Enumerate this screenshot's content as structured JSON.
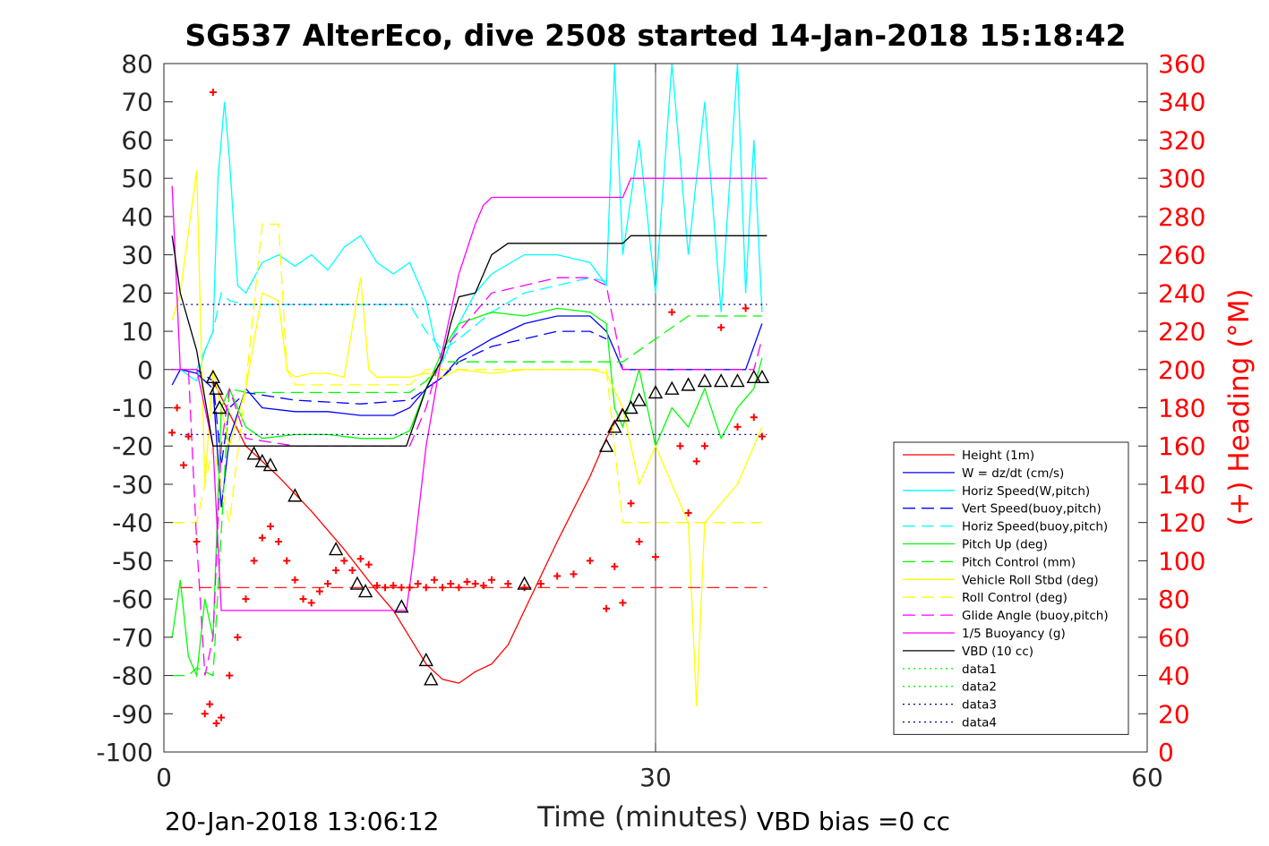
{
  "chart_data": {
    "type": "line",
    "title": "SG537 AlterEco, dive 2508 started 14-Jan-2018 15:18:42",
    "xlabel": "Time (minutes)",
    "ylabel": "",
    "y2label": "(+) Heading (°M)",
    "xlim": [
      0,
      60
    ],
    "ylim": [
      -100,
      80
    ],
    "y2lim": [
      0,
      360
    ],
    "xticks": [
      "0",
      "30",
      "60"
    ],
    "yticks": [
      "80",
      "70",
      "60",
      "50",
      "40",
      "30",
      "20",
      "10",
      "0",
      "-10",
      "-20",
      "-30",
      "-40",
      "-50",
      "-60",
      "-70",
      "-80",
      "-90",
      "-100"
    ],
    "y2ticks": [
      "360",
      "340",
      "320",
      "300",
      "280",
      "260",
      "240",
      "220",
      "200",
      "180",
      "160",
      "140",
      "120",
      "100",
      "80",
      "60",
      "40",
      "20",
      "0"
    ],
    "footer_left": "20-Jan-2018 13:06:12",
    "footer_right": "VBD bias =0 cc",
    "legend_position": "bottom-right",
    "colors": {
      "red": "#ff0000",
      "blue": "#0000ff",
      "cyan": "#00ffff",
      "green": "#00ff00",
      "yellow": "#ffff00",
      "magenta": "#ff00ff",
      "black": "#000000",
      "darkblue": "#00008b"
    },
    "series": [
      {
        "name": "Height (1m)",
        "color": "#ff0000",
        "style": "solid",
        "x": [
          3.0,
          5.0,
          7.0,
          9.0,
          11.0,
          13.0,
          14.0,
          15.0,
          16.0,
          17.0,
          18.0,
          19.0,
          20.0,
          21.0,
          22.0,
          24.0,
          26.0,
          27.0,
          28.0
        ],
        "y": [
          -3,
          -20,
          -28,
          -37,
          -47,
          -58,
          -63,
          -70,
          -77,
          -81,
          -82,
          -79,
          -77,
          -72,
          -63,
          -45,
          -28,
          -18,
          -10
        ]
      },
      {
        "name": "W = dz/dt (cm/s)",
        "color": "#0000ff",
        "style": "solid",
        "x": [
          0.5,
          1.0,
          2.0,
          3.0,
          3.5,
          4.0,
          5.0,
          6.0,
          8.0,
          10.0,
          12.0,
          14.0,
          15.0,
          16.0,
          17.0,
          18.0,
          20.0,
          22.0,
          24.0,
          26.0,
          27.0,
          27.5,
          28.0,
          30.0,
          32.0,
          34.0,
          35.5,
          36.5
        ],
        "y": [
          -4,
          0,
          -1,
          -5,
          -36,
          -18,
          -5,
          -10,
          -11,
          -11,
          -12,
          -12,
          -10,
          -5,
          -2,
          3,
          8,
          12,
          14,
          14,
          10,
          5,
          0,
          0,
          0,
          0,
          0,
          12
        ]
      },
      {
        "name": "Horiz Speed(W,pitch)",
        "color": "#00ffff",
        "style": "solid",
        "x": [
          0.5,
          1.0,
          2.0,
          2.5,
          3.0,
          3.3,
          3.7,
          4.0,
          4.5,
          5.0,
          6.0,
          7.0,
          8.0,
          9.0,
          10.0,
          11.0,
          12.0,
          13.0,
          14.0,
          15.0,
          16.0,
          16.5,
          17.0,
          18.0,
          19.0,
          20.0,
          22.0,
          24.0,
          26.0,
          27.0,
          27.5,
          28.0,
          29.0,
          30.0,
          31.0,
          32.0,
          33.0,
          34.0,
          35.0,
          35.5,
          36.0,
          36.5
        ],
        "y": [
          0,
          0,
          -3,
          5,
          10,
          50,
          70,
          55,
          22,
          20,
          28,
          30,
          27,
          30,
          26,
          32,
          35,
          28,
          25,
          28,
          18,
          8,
          2,
          12,
          20,
          25,
          30,
          30,
          28,
          22,
          80,
          30,
          60,
          20,
          80,
          30,
          70,
          15,
          80,
          20,
          60,
          15
        ]
      },
      {
        "name": "Vert Speed(buoy,pitch)",
        "color": "#0000ff",
        "style": "dashed",
        "x": [
          0.5,
          2.0,
          3.0,
          3.5,
          4.0,
          5.0,
          8.0,
          12.0,
          15.0,
          16.0,
          17.0,
          18.0,
          20.0,
          22.0,
          24.0,
          26.0,
          27.0
        ],
        "y": [
          0,
          0,
          -3,
          -25,
          -10,
          -6,
          -8,
          -9,
          -8,
          -5,
          -2,
          2,
          6,
          8,
          10,
          10,
          8
        ]
      },
      {
        "name": "Horiz Speed(buoy,pitch)",
        "color": "#00ffff",
        "style": "dashed",
        "x": [
          0.5,
          2.0,
          3.0,
          3.5,
          4.0,
          5.0,
          8.0,
          12.0,
          15.0,
          16.0,
          17.0,
          18.0,
          20.0,
          22.0,
          24.0,
          26.0,
          27.0
        ],
        "y": [
          0,
          0,
          10,
          20,
          18,
          17,
          17,
          17,
          17,
          10,
          5,
          8,
          15,
          20,
          22,
          24,
          23
        ]
      },
      {
        "name": "Pitch Up (deg)",
        "color": "#00ff00",
        "style": "solid",
        "x": [
          0.5,
          1.0,
          1.5,
          2.0,
          2.5,
          3.0,
          3.5,
          4.0,
          5.0,
          6.0,
          8.0,
          10.0,
          12.0,
          14.0,
          15.0,
          16.0,
          17.0,
          18.0,
          20.0,
          22.0,
          24.0,
          26.0,
          27.0,
          27.5,
          28.0,
          29.0,
          30.0,
          31.0,
          32.0,
          33.0,
          34.0,
          35.0,
          36.0,
          36.5
        ],
        "y": [
          -70,
          -55,
          -75,
          -80,
          -60,
          -70,
          -10,
          -5,
          -15,
          -18,
          -17,
          -17,
          -18,
          -18,
          -16,
          -5,
          5,
          12,
          15,
          14,
          16,
          15,
          12,
          -10,
          -15,
          0,
          -20,
          -10,
          -15,
          -5,
          -18,
          -10,
          -5,
          3
        ]
      },
      {
        "name": "Pitch Control (mm)",
        "color": "#00ff00",
        "style": "dashed",
        "x": [
          0.5,
          1.5,
          2.0,
          3.0,
          4.0,
          5.0,
          10.0,
          15.0,
          16.0,
          17.0,
          18.0,
          20.0,
          22.0,
          24.0,
          26.0,
          27.0,
          28.0,
          32.0,
          34.0,
          36.5
        ],
        "y": [
          -80,
          -80,
          -78,
          -80,
          -5,
          -6,
          -6,
          -6,
          -3,
          2,
          2,
          2,
          2,
          2,
          2,
          2,
          2,
          14,
          14,
          14
        ]
      },
      {
        "name": "Vehicle Roll Stbd (deg)",
        "color": "#ffff00",
        "style": "solid",
        "x": [
          0.5,
          1.0,
          2.0,
          2.5,
          3.0,
          4.0,
          5.0,
          6.0,
          7.0,
          7.5,
          8.0,
          9.0,
          10.0,
          11.0,
          12.0,
          12.5,
          13.0,
          14.0,
          15.0,
          16.0,
          17.0,
          18.0,
          20.0,
          22.0,
          24.0,
          26.0,
          27.0,
          28.0,
          29.0,
          30.0,
          31.0,
          32.0,
          32.5,
          33.0,
          34.0,
          35.0,
          36.0,
          36.5
        ],
        "y": [
          13,
          20,
          52,
          -30,
          0,
          -20,
          -5,
          20,
          18,
          0,
          -2,
          -1,
          -1,
          -2,
          24,
          0,
          -2,
          -2,
          -2,
          -1,
          -2,
          0,
          -1,
          0,
          0,
          0,
          -1,
          -10,
          -30,
          -20,
          -30,
          -40,
          -88,
          -40,
          -35,
          -30,
          -20,
          -15
        ]
      },
      {
        "name": "Roll Control (deg)",
        "color": "#ffff00",
        "style": "dashed",
        "x": [
          0.5,
          2.0,
          3.0,
          4.0,
          5.0,
          6.0,
          7.0,
          7.5,
          8.0,
          12.0,
          15.0,
          16.0,
          20.0,
          24.0,
          27.0,
          28.0,
          30.0,
          32.0,
          34.0,
          36.5
        ],
        "y": [
          -40,
          -40,
          -20,
          -40,
          -4,
          38,
          38,
          0,
          -4,
          -4,
          -4,
          0,
          0,
          0,
          0,
          -40,
          -40,
          -40,
          -40,
          -40
        ]
      },
      {
        "name": "Glide Angle (buoy,pitch)",
        "color": "#ff00ff",
        "style": "dashed",
        "x": [
          0.5,
          1.5,
          2.0,
          2.5,
          3.0,
          3.5,
          4.0,
          5.0,
          8.0,
          12.0,
          15.0,
          16.0,
          17.0,
          18.0,
          20.0,
          22.0,
          24.0,
          26.0,
          27.0,
          28.0,
          34.0,
          36.0,
          36.5
        ],
        "y": [
          0,
          0,
          -45,
          -80,
          -70,
          -20,
          -5,
          -18,
          -20,
          -20,
          -20,
          -10,
          5,
          10,
          20,
          22,
          24,
          24,
          22,
          0,
          0,
          0,
          8
        ]
      },
      {
        "name": "1/5 Buoyancy (g)",
        "color": "#ff00ff",
        "style": "solid",
        "x": [
          0.5,
          1.0,
          2.0,
          3.0,
          3.5,
          5.0,
          8.0,
          12.0,
          14.8,
          15.2,
          16.0,
          17.0,
          18.0,
          19.0,
          19.5,
          20.0,
          21.0,
          24.0,
          27.0,
          28.0,
          28.5,
          29.0,
          32.0,
          36.8
        ],
        "y": [
          48,
          0,
          0,
          -20,
          -63,
          -63,
          -63,
          -63,
          -63,
          -50,
          -20,
          5,
          25,
          38,
          43,
          45,
          45,
          45,
          45,
          45,
          50,
          50,
          50,
          50
        ]
      },
      {
        "name": "VBD (10 cc)",
        "color": "#000000",
        "style": "solid",
        "x": [
          0.5,
          1.0,
          2.0,
          2.8,
          3.0,
          3.5,
          5.0,
          8.0,
          12.0,
          14.8,
          15.2,
          16.0,
          17.0,
          17.5,
          18.0,
          19.0,
          19.5,
          20.0,
          21.0,
          24.0,
          27.0,
          28.0,
          28.5,
          29.0,
          32.0,
          36.8
        ],
        "y": [
          35,
          20,
          5,
          -15,
          -20,
          -20,
          -20,
          -20,
          -20,
          -20,
          -15,
          -5,
          3,
          12,
          19,
          20,
          25,
          30,
          33,
          33,
          33,
          33,
          35,
          35,
          35,
          35
        ]
      },
      {
        "name": "data1",
        "color": "#00ff00",
        "style": "dotted",
        "x": [],
        "y": []
      },
      {
        "name": "data2",
        "color": "#00ff00",
        "style": "dotted",
        "x": [],
        "y": []
      },
      {
        "name": "data3",
        "color": "#00008b",
        "style": "dotted",
        "x": [
          1.0,
          36.8
        ],
        "y": [
          -17,
          -17
        ]
      },
      {
        "name": "data4",
        "color": "#00008b",
        "style": "dotted",
        "x": [
          1.0,
          36.8
        ],
        "y": [
          17,
          17
        ]
      }
    ],
    "pitch_center_line": {
      "color": "#ff0000",
      "style": "dashed",
      "x": [
        1.0,
        36.8
      ],
      "y": [
        -57,
        -57
      ]
    },
    "heading_points": {
      "name": "(+) Heading",
      "color": "#ff0000",
      "x": [
        0.5,
        0.8,
        1.2,
        1.5,
        2.0,
        2.5,
        2.8,
        3.0,
        3.2,
        3.5,
        4.0,
        4.5,
        5.0,
        5.5,
        6.0,
        6.5,
        7.0,
        7.5,
        8.0,
        8.5,
        9.0,
        9.5,
        10.0,
        10.5,
        11.0,
        11.5,
        12.0,
        12.5,
        13.0,
        13.5,
        14.0,
        14.5,
        15.0,
        15.5,
        16.0,
        16.5,
        17.0,
        17.5,
        18.0,
        18.5,
        19.0,
        19.5,
        20.0,
        21.0,
        22.0,
        23.0,
        24.0,
        25.0,
        26.0,
        27.0,
        27.5,
        28.0,
        28.5,
        29.0,
        30.0,
        31.0,
        31.5,
        32.0,
        32.5,
        33.0,
        34.0,
        35.0,
        35.5,
        36.0,
        36.5
      ],
      "y": [
        167,
        180,
        150,
        165,
        110,
        20,
        25,
        345,
        15,
        18,
        40,
        60,
        80,
        100,
        112,
        118,
        110,
        100,
        90,
        80,
        78,
        84,
        88,
        95,
        100,
        95,
        101,
        98,
        87,
        86,
        87,
        86,
        86,
        88,
        86,
        90,
        86,
        88,
        86,
        89,
        88,
        87,
        90,
        88,
        86,
        88,
        92,
        93,
        100,
        75,
        97,
        78,
        130,
        110,
        102,
        230,
        160,
        125,
        152,
        160,
        222,
        170,
        232,
        175,
        165
      ]
    },
    "depth_markers": {
      "x": [
        3.0,
        3.2,
        3.4,
        5.5,
        6.0,
        6.5,
        8.0,
        10.5,
        11.8,
        12.3,
        14.5,
        16.0,
        16.3,
        22.0,
        27.0,
        27.5,
        28.0,
        28.5,
        29.0,
        30.0,
        31.0,
        32.0,
        33.0,
        34.0,
        35.0,
        36.0,
        36.5
      ],
      "y": [
        -2,
        -5,
        -10,
        -22,
        -24,
        -25,
        -33,
        -47,
        -56,
        -58,
        -62,
        -76,
        -81,
        -56,
        -20,
        -15,
        -12,
        -10,
        -8,
        -6,
        -5,
        -4,
        -3,
        -3,
        -3,
        -2,
        -2
      ]
    }
  },
  "legend": {
    "entries": [
      {
        "label": "Height (1m)",
        "color": "#ff0000",
        "style": "solid"
      },
      {
        "label": "W = dz/dt (cm/s)",
        "color": "#0000ff",
        "style": "solid"
      },
      {
        "label": "Horiz Speed(W,pitch)",
        "color": "#00ffff",
        "style": "solid"
      },
      {
        "label": "Vert Speed(buoy,pitch)",
        "color": "#0000ff",
        "style": "dashed"
      },
      {
        "label": "Horiz Speed(buoy,pitch)",
        "color": "#00ffff",
        "style": "dashed"
      },
      {
        "label": "Pitch Up (deg)",
        "color": "#00ff00",
        "style": "solid"
      },
      {
        "label": "Pitch Control (mm)",
        "color": "#00ff00",
        "style": "dashed"
      },
      {
        "label": "Vehicle Roll Stbd (deg)",
        "color": "#ffff00",
        "style": "solid"
      },
      {
        "label": "Roll Control (deg)",
        "color": "#ffff00",
        "style": "dashed"
      },
      {
        "label": "Glide Angle (buoy,pitch)",
        "color": "#ff00ff",
        "style": "dashed"
      },
      {
        "label": "1/5 Buoyancy (g)",
        "color": "#ff00ff",
        "style": "solid"
      },
      {
        "label": "VBD (10 cc)",
        "color": "#000000",
        "style": "solid"
      },
      {
        "label": "data1",
        "color": "#00ff00",
        "style": "dotted"
      },
      {
        "label": "data2",
        "color": "#00ff00",
        "style": "dotted"
      },
      {
        "label": "data3",
        "color": "#00008b",
        "style": "dotted"
      },
      {
        "label": "data4",
        "color": "#00008b",
        "style": "dotted"
      }
    ]
  }
}
